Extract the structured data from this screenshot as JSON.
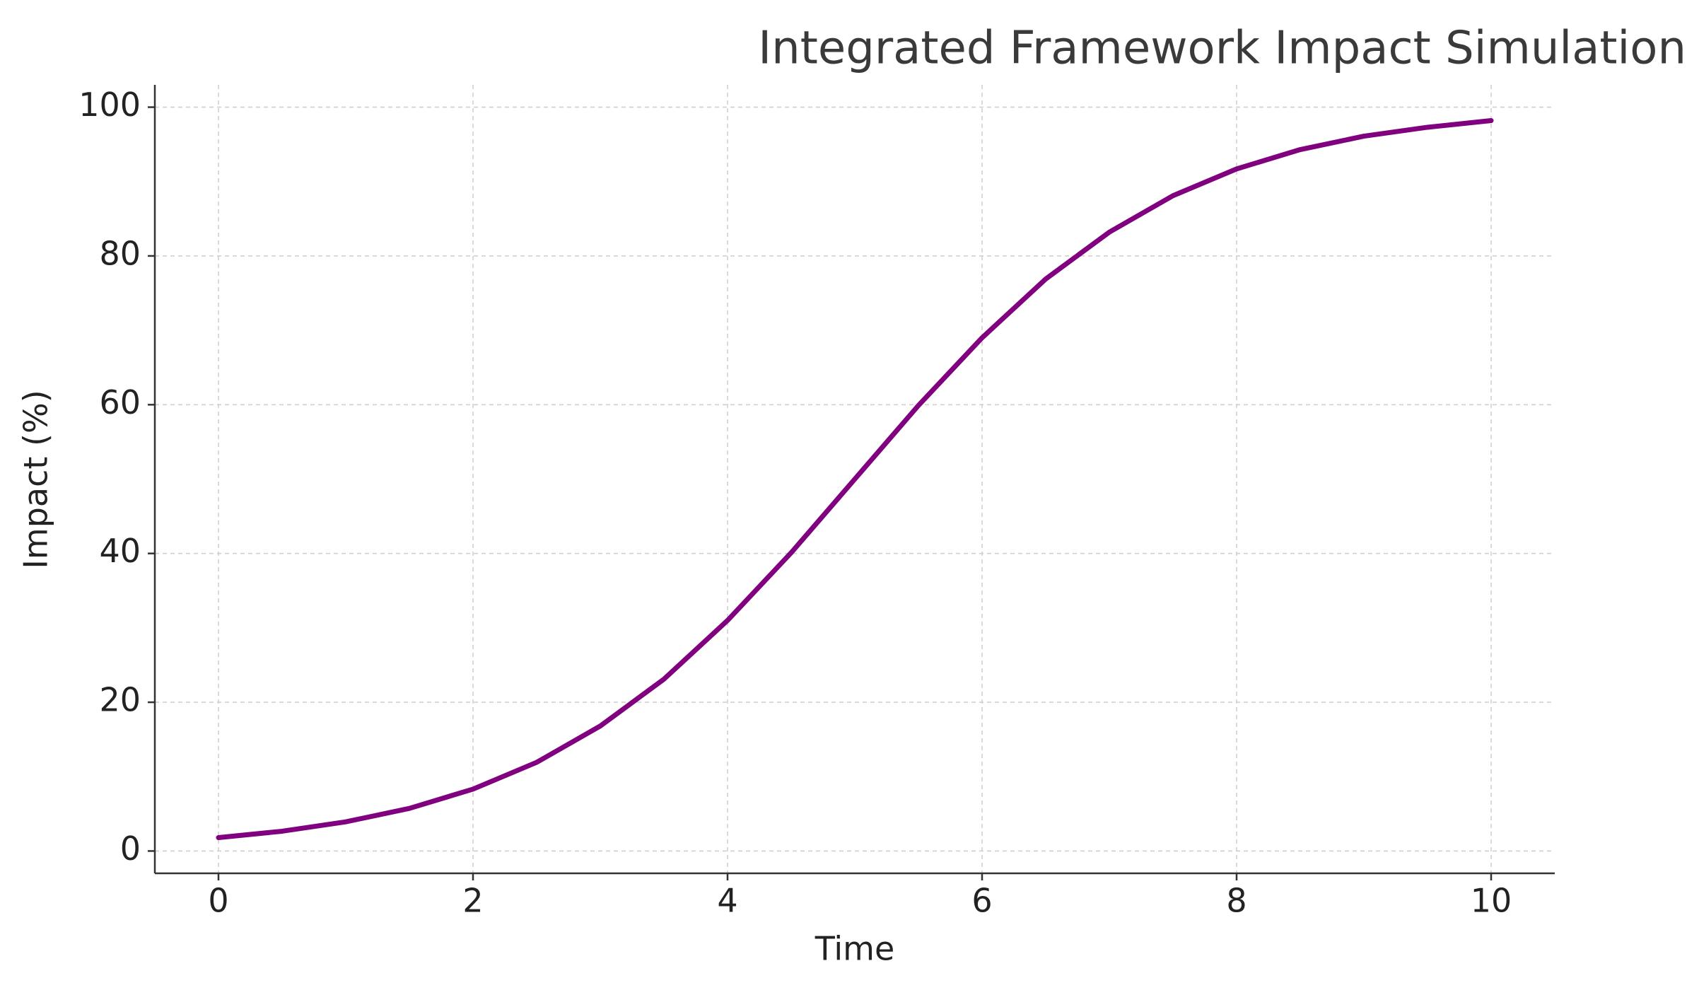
{
  "chart_data": {
    "type": "line",
    "title": "Integrated Framework Impact Simulation",
    "x_label": "Time",
    "y_label": "Impact (%)",
    "x": [
      0,
      0.5,
      1,
      1.5,
      2,
      2.5,
      3,
      3.5,
      4,
      4.5,
      5,
      5.5,
      6,
      6.5,
      7,
      7.5,
      8,
      8.5,
      9,
      9.5,
      10
    ],
    "series": [
      {
        "name": "Impact",
        "color": "#800080",
        "values": [
          1.8,
          2.66,
          3.92,
          5.73,
          8.32,
          11.92,
          16.8,
          23.1,
          31.0,
          40.1,
          50,
          59.9,
          69.0,
          76.9,
          83.2,
          88.1,
          91.7,
          94.3,
          96.1,
          97.3,
          98.2
        ]
      }
    ],
    "xlim": [
      -0.5,
      10.5
    ],
    "ylim": [
      -3,
      103
    ],
    "xticks": [
      0,
      2,
      4,
      6,
      8,
      10
    ],
    "yticks": [
      0,
      20,
      40,
      60,
      80,
      100
    ],
    "grid": true
  }
}
